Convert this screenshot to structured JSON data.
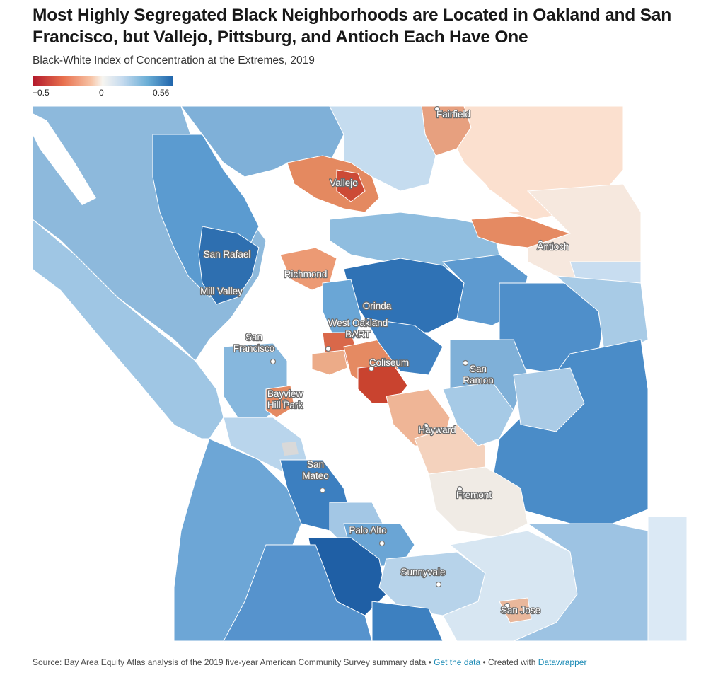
{
  "title": "Most Highly Segregated Black Neighborhoods are Located in Oakland and San Francisco, but Vallejo, Pittsburg, and Antioch Each Have One",
  "subtitle": "Black-White Index of Concentration at the Extremes, 2019",
  "legend": {
    "min_label": "−0.5",
    "mid_label": "0",
    "max_label": "0.56",
    "min": -0.5,
    "mid": 0,
    "max": 0.56,
    "colors": {
      "min": "#b2182b",
      "mid": "#f7f5f0",
      "max": "#2166ac"
    }
  },
  "map": {
    "labels": [
      {
        "name": "Fairfield"
      },
      {
        "name": "Vallejo"
      },
      {
        "name": "Antioch"
      },
      {
        "name": "San Rafael"
      },
      {
        "name": "Richmond"
      },
      {
        "name": "Mill Valley"
      },
      {
        "name": "Orinda"
      },
      {
        "name": "West Oakland BART"
      },
      {
        "name": "San Francisco"
      },
      {
        "name": "Coliseum"
      },
      {
        "name": "San Ramon"
      },
      {
        "name": "Bayview Hill Park"
      },
      {
        "name": "Hayward"
      },
      {
        "name": "San Mateo"
      },
      {
        "name": "Fremont"
      },
      {
        "name": "Palo Alto"
      },
      {
        "name": "Sunnyvale"
      },
      {
        "name": "San Jose"
      }
    ]
  },
  "footer": {
    "source": "Source: Bay Area Equity Atlas analysis of the 2019 five-year American Community Survey summary data • ",
    "get_data": "Get the data",
    "created": " • Created with ",
    "tool": "Datawrapper"
  }
}
